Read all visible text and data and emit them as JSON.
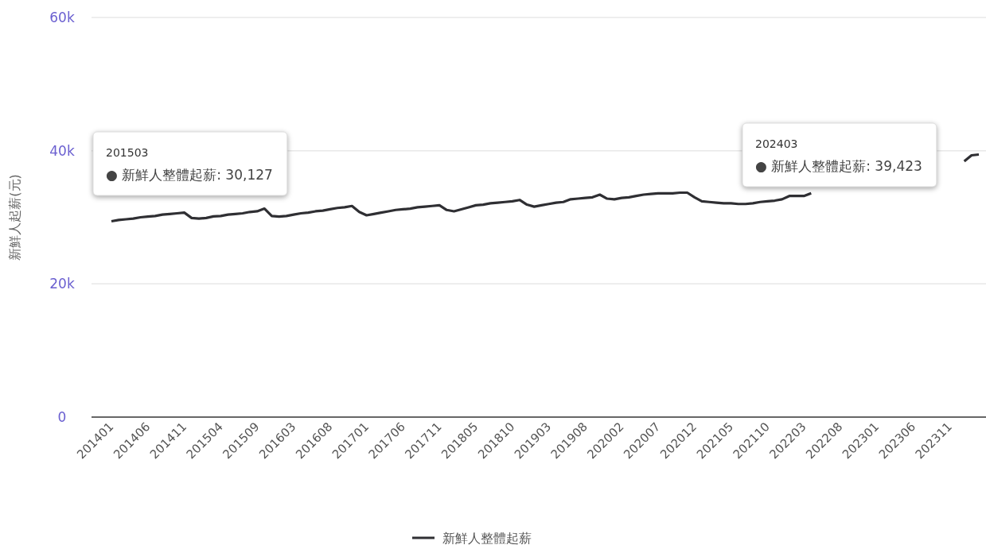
{
  "chart_data": {
    "type": "line",
    "ylabel": "新鮮人起薪(元)",
    "categories": [
      "201401",
      null,
      null,
      null,
      null,
      "201406",
      null,
      null,
      null,
      null,
      "201411",
      null,
      null,
      null,
      null,
      "201504",
      null,
      null,
      null,
      null,
      "201509",
      null,
      null,
      null,
      null,
      "201603",
      null,
      null,
      null,
      null,
      "201608",
      null,
      null,
      null,
      null,
      "201701",
      null,
      null,
      null,
      null,
      "201706",
      null,
      null,
      null,
      null,
      "201711",
      null,
      null,
      null,
      null,
      "201805",
      null,
      null,
      null,
      null,
      "201810",
      null,
      null,
      null,
      null,
      "201903",
      null,
      null,
      null,
      null,
      "201908",
      null,
      null,
      null,
      null,
      "202002",
      null,
      null,
      null,
      null,
      "202007",
      null,
      null,
      null,
      null,
      "202012",
      null,
      null,
      null,
      null,
      "202105",
      null,
      null,
      null,
      null,
      "202110",
      null,
      null,
      null,
      null,
      "202203",
      null,
      null,
      null,
      null,
      "202208",
      null,
      null,
      null,
      null,
      "202301",
      null,
      null,
      null,
      null,
      "202306",
      null,
      null,
      null,
      null,
      "202311",
      null,
      null,
      null,
      null
    ],
    "series": [
      {
        "name": "新鮮人整體起薪",
        "color": "#2f2f33",
        "values": [
          29400,
          29600,
          29700,
          29800,
          30000,
          30100,
          30200,
          30400,
          30500,
          30600,
          30700,
          29900,
          29800,
          29900,
          30127,
          30200,
          30400,
          30500,
          30600,
          30800,
          30900,
          31300,
          30200,
          30100,
          30200,
          30400,
          30600,
          30700,
          30900,
          31000,
          31200,
          31400,
          31500,
          31700,
          30800,
          30300,
          30500,
          30700,
          30900,
          31100,
          31200,
          31300,
          31500,
          31600,
          31700,
          31800,
          31100,
          30900,
          31200,
          31500,
          31800,
          31900,
          32100,
          32200,
          32300,
          32400,
          32600,
          31900,
          31600,
          31800,
          32000,
          32200,
          32300,
          32700,
          32800,
          32900,
          33000,
          33400,
          32800,
          32700,
          32900,
          33000,
          33200,
          33400,
          33500,
          33600,
          33600,
          33600,
          33700,
          33700,
          33000,
          32400,
          32300,
          32200,
          32100,
          32100,
          32000,
          32000,
          32100,
          32300,
          32400,
          32500,
          32700,
          33200,
          33200,
          33200,
          33600,
          null,
          null,
          null,
          null,
          null,
          null,
          null,
          null,
          null,
          null,
          null,
          null,
          null,
          null,
          null,
          null,
          null,
          null,
          null,
          null,
          38400,
          39300,
          39423
        ]
      }
    ],
    "ylim": [
      0,
      60000
    ],
    "yticks": [
      {
        "value": 0,
        "label": "0"
      },
      {
        "value": 20000,
        "label": "20k"
      },
      {
        "value": 40000,
        "label": "40k"
      },
      {
        "value": 60000,
        "label": "60k"
      }
    ],
    "grid": "y",
    "legend": "bottom",
    "line_style": "solid",
    "annotations": [
      "201503\n● 新鮮人整體起薪: 30,127",
      "202403\n● 新鮮人整體起薪: 39,423"
    ]
  }
}
